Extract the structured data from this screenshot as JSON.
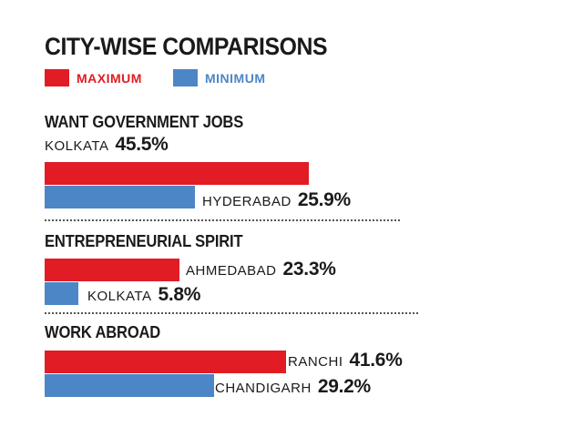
{
  "chart_data": {
    "type": "bar",
    "title": "CITY-WISE COMPARISONS",
    "legend": [
      {
        "name": "MAXIMUM",
        "color": "#e11c24"
      },
      {
        "name": "MINIMUM",
        "color": "#4d86c6"
      }
    ],
    "groups": [
      {
        "title": "WANT GOVERNMENT JOBS",
        "max": {
          "city": "KOLKATA",
          "value": 45.5,
          "label": "45.5%"
        },
        "min": {
          "city": "HYDERABAD",
          "value": 25.9,
          "label": "25.9%"
        }
      },
      {
        "title": "ENTREPRENEURIAL SPIRIT",
        "max": {
          "city": "AHMEDABAD",
          "value": 23.3,
          "label": "23.3%"
        },
        "min": {
          "city": "KOLKATA",
          "value": 5.8,
          "label": "5.8%"
        }
      },
      {
        "title": "WORK ABROAD",
        "max": {
          "city": "RANCHI",
          "value": 41.6,
          "label": "41.6%"
        },
        "min": {
          "city": "CHANDIGARH",
          "value": 29.2,
          "label": "29.2%"
        }
      }
    ],
    "unit": "%"
  }
}
